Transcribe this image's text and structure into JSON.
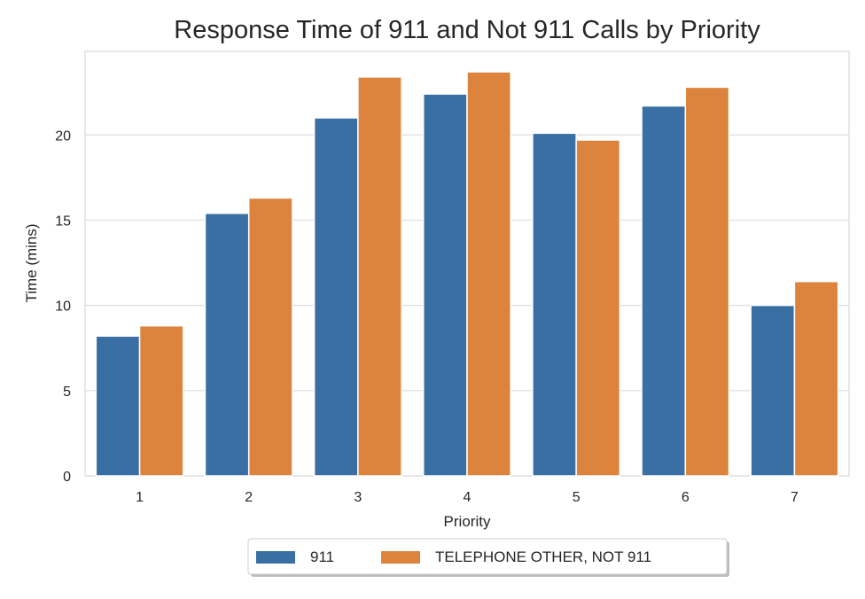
{
  "chart_data": {
    "type": "bar",
    "title": "Response Time of 911 and Not 911 Calls by Priority",
    "xlabel": "Priority",
    "ylabel": "Time (mins)",
    "categories": [
      "1",
      "2",
      "3",
      "4",
      "5",
      "6",
      "7"
    ],
    "series": [
      {
        "name": "911",
        "color": "#3a6fa3",
        "values": [
          8.2,
          15.4,
          21.0,
          22.4,
          20.1,
          21.7,
          10.0
        ]
      },
      {
        "name": "TELEPHONE OTHER, NOT 911",
        "color": "#dc843e",
        "values": [
          8.8,
          16.3,
          23.4,
          23.7,
          19.7,
          22.8,
          11.4
        ]
      }
    ],
    "ylim": [
      0,
      24.9
    ],
    "yticks": [
      0,
      5,
      10,
      15,
      20
    ],
    "grid": "horizontal",
    "legend_position": "bottom-center"
  }
}
